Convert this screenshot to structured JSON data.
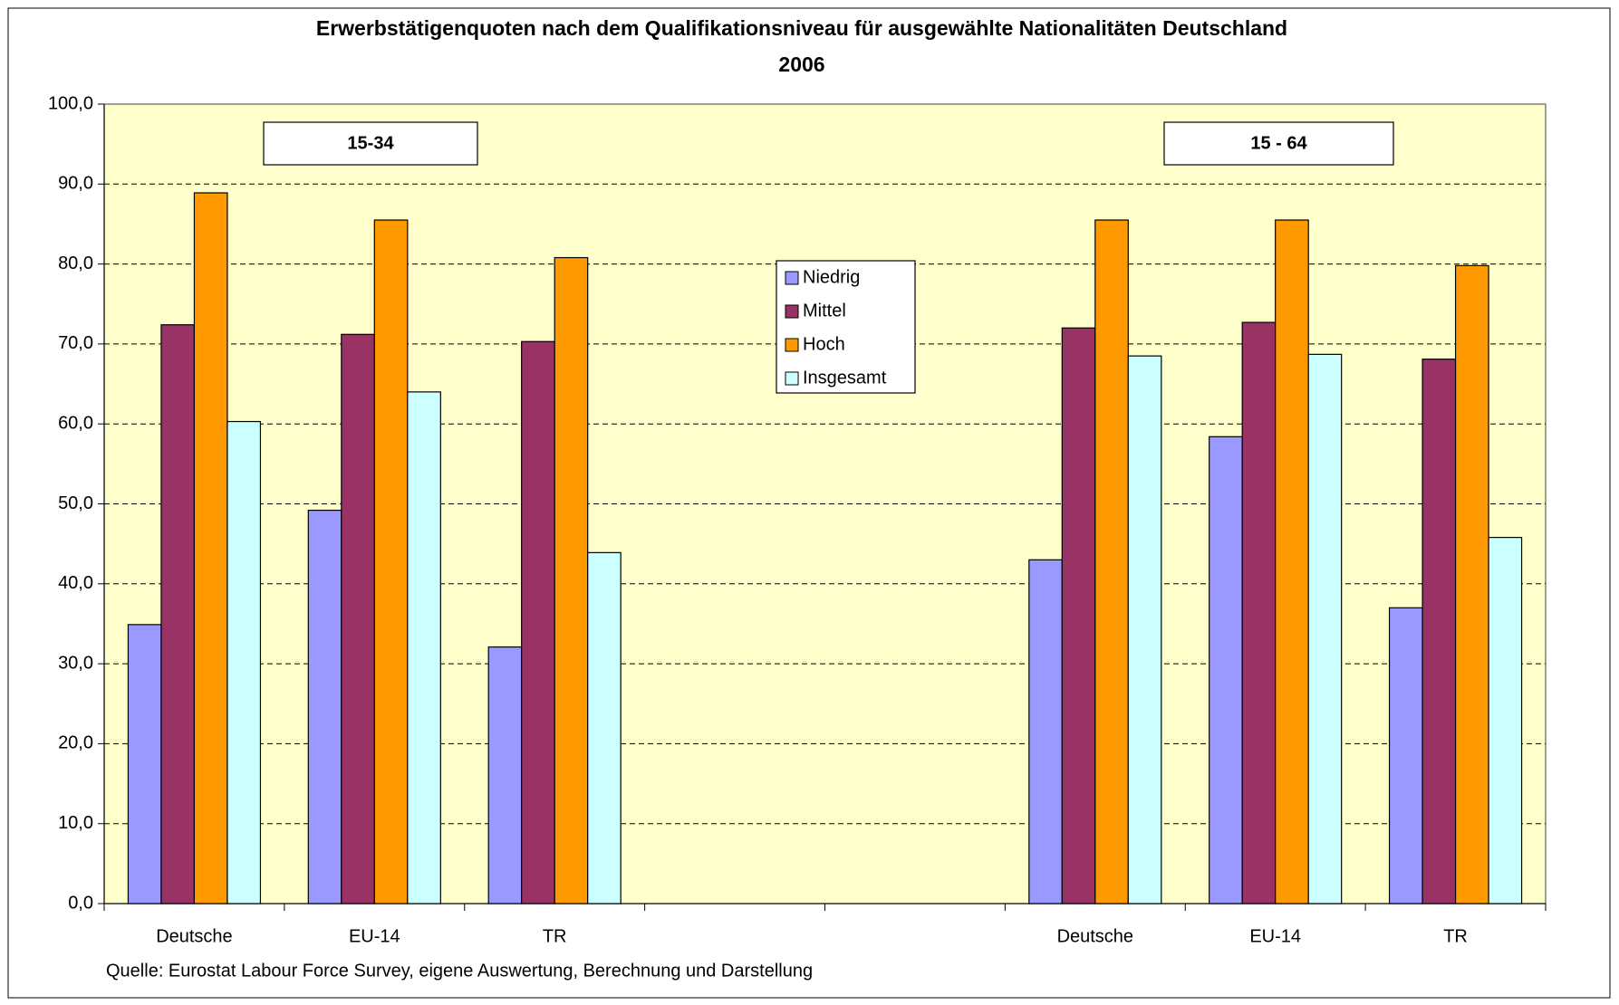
{
  "chart_data": {
    "type": "bar",
    "title_lines": [
      "Erwerbstätigenquoten nach dem Qualifikationsniveau für ausgewählte Nationalitäten Deutschland",
      "2006"
    ],
    "annotations": [
      "15-34",
      "15 - 64"
    ],
    "source": "Quelle: Eurostat Labour Force Survey, eigene Auswertung, Berechnung und Darstellung",
    "categories": [
      "Deutsche",
      "EU-14",
      "TR",
      null,
      null,
      "Deutsche",
      "EU-14",
      "TR"
    ],
    "series": [
      {
        "name": "Niedrig",
        "color": "#9999ff",
        "values": [
          34.9,
          49.2,
          32.1,
          null,
          null,
          43.0,
          58.4,
          37.0
        ]
      },
      {
        "name": "Mittel",
        "color": "#993366",
        "values": [
          72.4,
          71.2,
          70.3,
          null,
          null,
          72.0,
          72.7,
          68.1
        ]
      },
      {
        "name": "Hoch",
        "color": "#ff9900",
        "values": [
          88.9,
          85.5,
          80.8,
          null,
          null,
          85.5,
          85.5,
          79.8
        ]
      },
      {
        "name": "Insgesamt",
        "color": "#ccffff",
        "values": [
          60.3,
          64.0,
          43.9,
          null,
          null,
          68.5,
          68.7,
          45.8
        ]
      }
    ],
    "ylim": [
      0,
      100
    ],
    "yticks": [
      {
        "value": 0,
        "label": "0,0"
      },
      {
        "value": 10,
        "label": "10,0"
      },
      {
        "value": 20,
        "label": "20,0"
      },
      {
        "value": 30,
        "label": "30,0"
      },
      {
        "value": 40,
        "label": "40,0"
      },
      {
        "value": 50,
        "label": "50,0"
      },
      {
        "value": 60,
        "label": "60,0"
      },
      {
        "value": 70,
        "label": "70,0"
      },
      {
        "value": 80,
        "label": "80,0"
      },
      {
        "value": 90,
        "label": "90,0"
      },
      {
        "value": 100,
        "label": "100,0"
      }
    ],
    "grid": true,
    "plot_background": "#ffffcc"
  }
}
